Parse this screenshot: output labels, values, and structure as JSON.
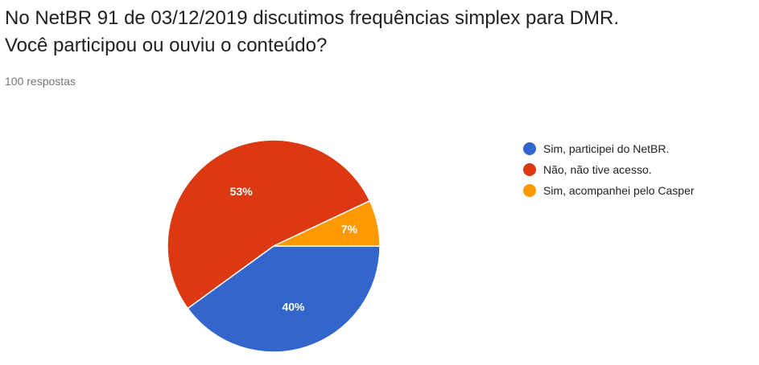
{
  "question": {
    "line1": "No NetBR 91 de 03/12/2019 discutimos frequências simplex para DMR.",
    "line2": "Você participou ou ouviu o conteúdo?"
  },
  "responses_label": "100 respostas",
  "chart_data": {
    "type": "pie",
    "title": "",
    "slices": [
      {
        "label": "Sim, participei do NetBR.",
        "value": 40,
        "display": "40%",
        "color": "#3366cc"
      },
      {
        "label": "Não, não tive acesso.",
        "value": 53,
        "display": "53%",
        "color": "#dc3912"
      },
      {
        "label": "Sim, acompanhei pelo Casper",
        "value": 7,
        "display": "7%",
        "color": "#ff9900"
      }
    ],
    "legend_position": "right"
  }
}
